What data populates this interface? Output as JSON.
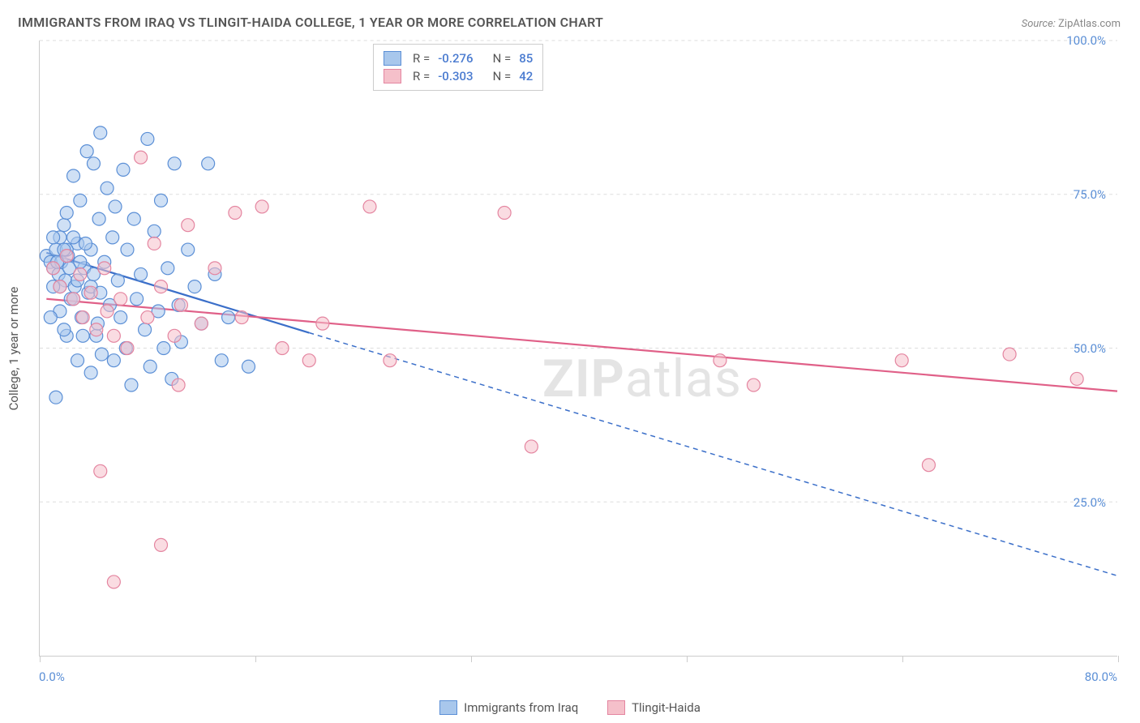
{
  "title": "IMMIGRANTS FROM IRAQ VS TLINGIT-HAIDA COLLEGE, 1 YEAR OR MORE CORRELATION CHART",
  "source_label": "Source:",
  "source_value": "ZipAtlas.com",
  "y_axis_label": "College, 1 year or more",
  "watermark_bold": "ZIP",
  "watermark_rest": "atlas",
  "chart": {
    "type": "scatter",
    "xlim": [
      0,
      80
    ],
    "ylim": [
      0,
      100
    ],
    "x_ticks": [
      0,
      16,
      32,
      48,
      64,
      80
    ],
    "x_tick_labels_visible": {
      "first": "0.0%",
      "last": "80.0%"
    },
    "y_ticks": [
      25,
      50,
      75,
      100
    ],
    "y_tick_labels": [
      "25.0%",
      "50.0%",
      "75.0%",
      "100.0%"
    ],
    "background_color": "#ffffff",
    "grid_color": "#dddddd",
    "grid_dash": true,
    "axis_color": "#cccccc",
    "tick_label_color": "#5b8fd6",
    "marker_radius": 8,
    "marker_opacity": 0.55,
    "marker_stroke_width": 1.2,
    "line_width": 2.2,
    "dash_pattern": "6,5",
    "series": [
      {
        "id": "iraq",
        "label": "Immigrants from Iraq",
        "color_fill": "#a8c7ec",
        "color_stroke": "#5b8fd6",
        "line_color": "#3b6fc9",
        "R": "-0.276",
        "N": "85",
        "trend_solid": {
          "x1": 0.5,
          "y1": 65.5,
          "x2": 20,
          "y2": 52.5
        },
        "trend_dash": {
          "x1": 20,
          "y1": 52.5,
          "x2": 80,
          "y2": 13
        },
        "points": [
          [
            0.5,
            65
          ],
          [
            0.8,
            64
          ],
          [
            1.0,
            63
          ],
          [
            1.2,
            66
          ],
          [
            1.4,
            62
          ],
          [
            1.5,
            68
          ],
          [
            1.6,
            64
          ],
          [
            1.8,
            70
          ],
          [
            1.9,
            61
          ],
          [
            2.0,
            72
          ],
          [
            2.1,
            65
          ],
          [
            2.3,
            58
          ],
          [
            2.5,
            78
          ],
          [
            2.6,
            60
          ],
          [
            2.8,
            67
          ],
          [
            3.0,
            74
          ],
          [
            3.1,
            55
          ],
          [
            3.3,
            63
          ],
          [
            3.5,
            82
          ],
          [
            3.6,
            59
          ],
          [
            3.8,
            66
          ],
          [
            4.0,
            80
          ],
          [
            4.2,
            52
          ],
          [
            4.4,
            71
          ],
          [
            4.5,
            85
          ],
          [
            4.6,
            49
          ],
          [
            4.8,
            64
          ],
          [
            5.0,
            76
          ],
          [
            5.2,
            57
          ],
          [
            5.4,
            68
          ],
          [
            5.5,
            48
          ],
          [
            5.6,
            73
          ],
          [
            5.8,
            61
          ],
          [
            6.0,
            55
          ],
          [
            6.2,
            79
          ],
          [
            6.4,
            50
          ],
          [
            6.5,
            66
          ],
          [
            6.8,
            44
          ],
          [
            7.0,
            71
          ],
          [
            7.2,
            58
          ],
          [
            7.5,
            62
          ],
          [
            7.8,
            53
          ],
          [
            8.0,
            84
          ],
          [
            8.2,
            47
          ],
          [
            8.5,
            69
          ],
          [
            8.8,
            56
          ],
          [
            9.0,
            74
          ],
          [
            9.2,
            50
          ],
          [
            9.5,
            63
          ],
          [
            9.8,
            45
          ],
          [
            10.0,
            80
          ],
          [
            10.3,
            57
          ],
          [
            10.5,
            51
          ],
          [
            11.0,
            66
          ],
          [
            11.5,
            60
          ],
          [
            12.0,
            54
          ],
          [
            12.5,
            80
          ],
          [
            13.0,
            62
          ],
          [
            13.5,
            48
          ],
          [
            14.0,
            55
          ],
          [
            15.5,
            47
          ],
          [
            1.2,
            42
          ],
          [
            2.0,
            52
          ],
          [
            2.8,
            48
          ],
          [
            3.2,
            52
          ],
          [
            3.8,
            46
          ],
          [
            4.3,
            54
          ],
          [
            1.5,
            60
          ],
          [
            2.0,
            66
          ],
          [
            2.5,
            58
          ],
          [
            1.0,
            60
          ],
          [
            1.5,
            56
          ],
          [
            1.8,
            53
          ],
          [
            0.8,
            55
          ],
          [
            1.0,
            68
          ],
          [
            1.3,
            64
          ],
          [
            1.8,
            66
          ],
          [
            2.2,
            63
          ],
          [
            2.5,
            68
          ],
          [
            2.8,
            61
          ],
          [
            3.0,
            64
          ],
          [
            3.4,
            67
          ],
          [
            3.8,
            60
          ],
          [
            4.0,
            62
          ],
          [
            4.5,
            59
          ]
        ]
      },
      {
        "id": "tlingit",
        "label": "Tlingit-Haida",
        "color_fill": "#f5c0ca",
        "color_stroke": "#e485a0",
        "line_color": "#e06088",
        "R": "-0.303",
        "N": "42",
        "trend_solid": {
          "x1": 0.5,
          "y1": 58,
          "x2": 80,
          "y2": 43
        },
        "trend_dash": null,
        "points": [
          [
            1.0,
            63
          ],
          [
            1.5,
            60
          ],
          [
            2.0,
            65
          ],
          [
            2.5,
            58
          ],
          [
            3.0,
            62
          ],
          [
            3.2,
            55
          ],
          [
            3.8,
            59
          ],
          [
            4.2,
            53
          ],
          [
            4.8,
            63
          ],
          [
            5.0,
            56
          ],
          [
            5.5,
            52
          ],
          [
            6.0,
            58
          ],
          [
            6.5,
            50
          ],
          [
            7.5,
            81
          ],
          [
            8.0,
            55
          ],
          [
            8.5,
            67
          ],
          [
            9.0,
            60
          ],
          [
            10.0,
            52
          ],
          [
            10.3,
            44
          ],
          [
            10.5,
            57
          ],
          [
            11.0,
            70
          ],
          [
            12.0,
            54
          ],
          [
            13.0,
            63
          ],
          [
            14.5,
            72
          ],
          [
            15.0,
            55
          ],
          [
            16.5,
            73
          ],
          [
            18.0,
            50
          ],
          [
            20.0,
            48
          ],
          [
            21.0,
            54
          ],
          [
            24.5,
            73
          ],
          [
            26.0,
            48
          ],
          [
            34.5,
            72
          ],
          [
            36.5,
            34
          ],
          [
            50.5,
            48
          ],
          [
            53.0,
            44
          ],
          [
            64.0,
            48
          ],
          [
            66.0,
            31
          ],
          [
            72.0,
            49
          ],
          [
            77.0,
            45
          ],
          [
            4.5,
            30
          ],
          [
            5.5,
            12
          ],
          [
            9.0,
            18
          ]
        ]
      }
    ]
  },
  "legend_top": {
    "r_label": "R =",
    "n_label": "N ="
  }
}
